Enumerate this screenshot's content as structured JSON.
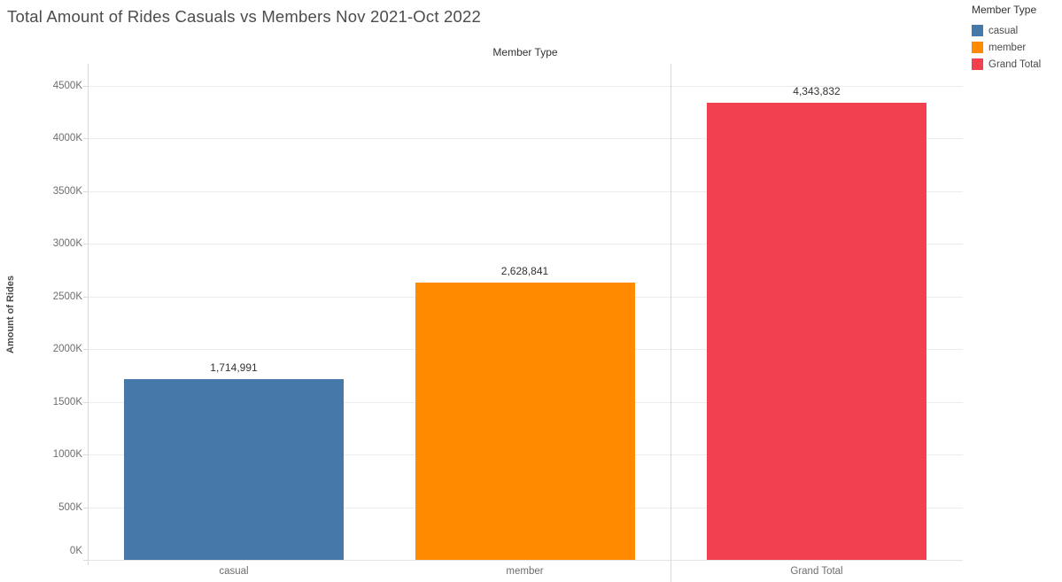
{
  "title": "Total Amount of Rides Casuals vs Members Nov 2021-Oct 2022",
  "legend": {
    "title": "Member Type",
    "items": [
      {
        "label": "casual",
        "color": "#4678aa"
      },
      {
        "label": "member",
        "color": "#ff8a00"
      },
      {
        "label": "Grand Total",
        "color": "#f3404f"
      }
    ]
  },
  "chart_data": {
    "type": "bar",
    "title": "Total Amount of Rides Casuals vs Members Nov 2021-Oct 2022",
    "column_header": "Member Type",
    "xlabel": "Member Type",
    "ylabel": "Amount of Rides",
    "categories": [
      "casual",
      "member",
      "Grand Total"
    ],
    "values": [
      1714991,
      2628841,
      4343832
    ],
    "value_labels": [
      "1,714,991",
      "2,628,841",
      "4,343,832"
    ],
    "bar_colors": [
      "#4678aa",
      "#ff8a00",
      "#f3404f"
    ],
    "ylim": [
      0,
      4700000
    ],
    "yticks": [
      {
        "value": 0,
        "label": "0K"
      },
      {
        "value": 500000,
        "label": "500K"
      },
      {
        "value": 1000000,
        "label": "1000K"
      },
      {
        "value": 1500000,
        "label": "1500K"
      },
      {
        "value": 2000000,
        "label": "2000K"
      },
      {
        "value": 2500000,
        "label": "2500K"
      },
      {
        "value": 3000000,
        "label": "3000K"
      },
      {
        "value": 3500000,
        "label": "3500K"
      },
      {
        "value": 4000000,
        "label": "4000K"
      },
      {
        "value": 4500000,
        "label": "4500K"
      }
    ],
    "grid": true,
    "legend_position": "top-right",
    "pane_separator_after_category": "member"
  }
}
